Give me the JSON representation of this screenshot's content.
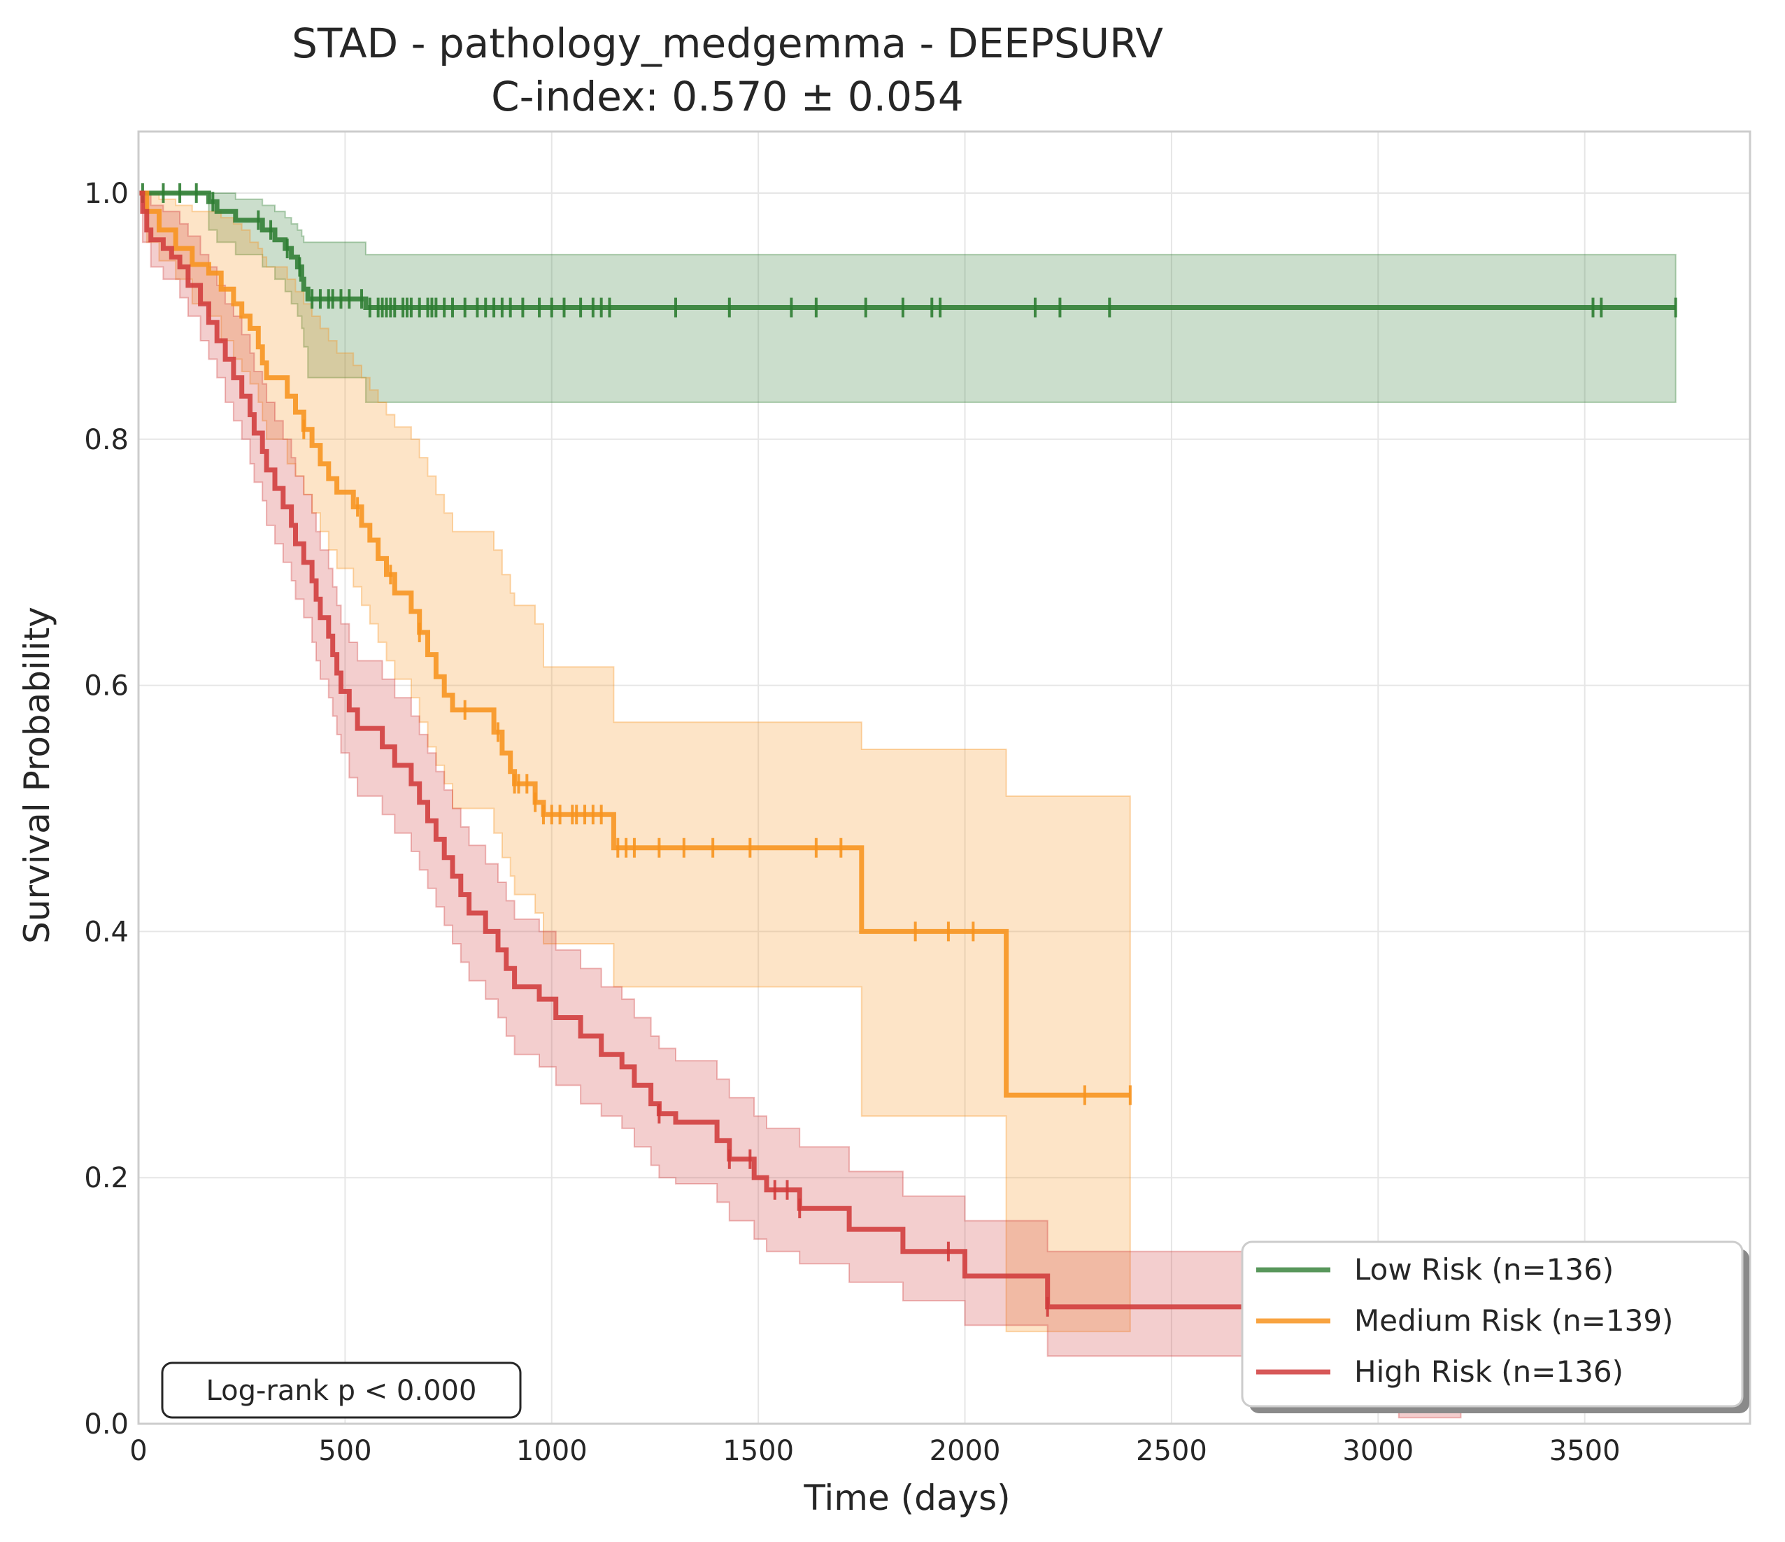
{
  "chart_data": {
    "type": "line",
    "title": "STAD - pathology_medgemma - DEEPSURV",
    "subtitle": "C-index: 0.570 ± 0.054",
    "xlabel": "Time (days)",
    "ylabel": "Survival Probability",
    "xlim": [
      0,
      3900
    ],
    "ylim": [
      0,
      1.05
    ],
    "xticks": [
      0,
      500,
      1000,
      1500,
      2000,
      2500,
      3000,
      3500
    ],
    "yticks": [
      0.0,
      0.2,
      0.4,
      0.6,
      0.8,
      1.0
    ],
    "xtick_labels": [
      "0",
      "500",
      "1000",
      "1500",
      "2000",
      "2500",
      "3000",
      "3500"
    ],
    "ytick_labels": [
      "0.0",
      "0.2",
      "0.4",
      "0.6",
      "0.8",
      "1.0"
    ],
    "grid": true,
    "legend_position": "bottom-right",
    "annotation": "Log-rank p < 0.000",
    "series": [
      {
        "name": "Low Risk (n=136)",
        "color": "#2e7d32",
        "steps": [
          [
            0,
            1.0
          ],
          [
            170,
            0.993
          ],
          [
            190,
            0.985
          ],
          [
            235,
            0.978
          ],
          [
            300,
            0.97
          ],
          [
            330,
            0.962
          ],
          [
            355,
            0.955
          ],
          [
            370,
            0.948
          ],
          [
            385,
            0.94
          ],
          [
            395,
            0.93
          ],
          [
            400,
            0.922
          ],
          [
            410,
            0.914
          ],
          [
            550,
            0.907
          ],
          [
            3720,
            0.907
          ]
        ],
        "ci": [
          [
            0,
            1.0,
            1.0
          ],
          [
            170,
            1.0,
            0.97
          ],
          [
            190,
            1.0,
            0.96
          ],
          [
            235,
            0.995,
            0.95
          ],
          [
            300,
            0.99,
            0.94
          ],
          [
            330,
            0.985,
            0.93
          ],
          [
            355,
            0.98,
            0.92
          ],
          [
            370,
            0.975,
            0.91
          ],
          [
            385,
            0.97,
            0.9
          ],
          [
            395,
            0.965,
            0.89
          ],
          [
            400,
            0.96,
            0.875
          ],
          [
            410,
            0.96,
            0.85
          ],
          [
            550,
            0.95,
            0.83
          ],
          [
            3720,
            0.95,
            0.83
          ]
        ],
        "censor": [
          10,
          60,
          100,
          140,
          180,
          290,
          320,
          360,
          390,
          420,
          440,
          460,
          470,
          490,
          510,
          540,
          560,
          580,
          590,
          600,
          610,
          620,
          640,
          650,
          660,
          680,
          700,
          710,
          720,
          740,
          760,
          790,
          820,
          840,
          860,
          880,
          900,
          930,
          970,
          1000,
          1030,
          1070,
          1100,
          1120,
          1140,
          1300,
          1430,
          1580,
          1640,
          1760,
          1850,
          1920,
          1940,
          2170,
          2230,
          2350,
          3520,
          3540,
          3720
        ]
      },
      {
        "name": "Medium Risk (n=139)",
        "color": "#f7931e",
        "steps": [
          [
            0,
            1.0
          ],
          [
            20,
            0.985
          ],
          [
            50,
            0.97
          ],
          [
            90,
            0.955
          ],
          [
            130,
            0.942
          ],
          [
            170,
            0.935
          ],
          [
            200,
            0.922
          ],
          [
            230,
            0.91
          ],
          [
            250,
            0.9
          ],
          [
            270,
            0.89
          ],
          [
            290,
            0.875
          ],
          [
            300,
            0.862
          ],
          [
            310,
            0.85
          ],
          [
            360,
            0.835
          ],
          [
            380,
            0.822
          ],
          [
            400,
            0.808
          ],
          [
            420,
            0.795
          ],
          [
            440,
            0.78
          ],
          [
            460,
            0.768
          ],
          [
            480,
            0.757
          ],
          [
            520,
            0.745
          ],
          [
            540,
            0.73
          ],
          [
            560,
            0.718
          ],
          [
            580,
            0.703
          ],
          [
            600,
            0.69
          ],
          [
            620,
            0.675
          ],
          [
            660,
            0.66
          ],
          [
            680,
            0.643
          ],
          [
            700,
            0.625
          ],
          [
            720,
            0.607
          ],
          [
            740,
            0.592
          ],
          [
            760,
            0.58
          ],
          [
            860,
            0.562
          ],
          [
            880,
            0.545
          ],
          [
            900,
            0.53
          ],
          [
            910,
            0.52
          ],
          [
            960,
            0.505
          ],
          [
            980,
            0.495
          ],
          [
            1150,
            0.468
          ],
          [
            1750,
            0.4
          ],
          [
            2100,
            0.267
          ],
          [
            2400,
            0.267
          ]
        ],
        "ci": [
          [
            0,
            1.0,
            1.0
          ],
          [
            20,
            1.0,
            0.96
          ],
          [
            50,
            0.995,
            0.945
          ],
          [
            90,
            0.99,
            0.93
          ],
          [
            130,
            0.985,
            0.91
          ],
          [
            170,
            0.985,
            0.9
          ],
          [
            200,
            0.98,
            0.88
          ],
          [
            230,
            0.975,
            0.865
          ],
          [
            250,
            0.97,
            0.855
          ],
          [
            270,
            0.96,
            0.845
          ],
          [
            290,
            0.955,
            0.83
          ],
          [
            300,
            0.948,
            0.815
          ],
          [
            310,
            0.94,
            0.8
          ],
          [
            360,
            0.93,
            0.78
          ],
          [
            380,
            0.92,
            0.77
          ],
          [
            400,
            0.91,
            0.755
          ],
          [
            420,
            0.9,
            0.74
          ],
          [
            440,
            0.89,
            0.725
          ],
          [
            460,
            0.88,
            0.71
          ],
          [
            480,
            0.87,
            0.695
          ],
          [
            520,
            0.86,
            0.68
          ],
          [
            540,
            0.85,
            0.665
          ],
          [
            560,
            0.84,
            0.65
          ],
          [
            580,
            0.83,
            0.635
          ],
          [
            600,
            0.82,
            0.62
          ],
          [
            620,
            0.81,
            0.605
          ],
          [
            660,
            0.8,
            0.59
          ],
          [
            680,
            0.785,
            0.57
          ],
          [
            700,
            0.77,
            0.55
          ],
          [
            720,
            0.755,
            0.535
          ],
          [
            740,
            0.74,
            0.52
          ],
          [
            760,
            0.725,
            0.5
          ],
          [
            860,
            0.71,
            0.48
          ],
          [
            880,
            0.69,
            0.46
          ],
          [
            900,
            0.675,
            0.445
          ],
          [
            910,
            0.665,
            0.43
          ],
          [
            960,
            0.65,
            0.415
          ],
          [
            980,
            0.615,
            0.39
          ],
          [
            1150,
            0.57,
            0.355
          ],
          [
            1750,
            0.548,
            0.25
          ],
          [
            2100,
            0.51,
            0.075
          ],
          [
            2400,
            0.51,
            0.075
          ]
        ],
        "censor": [
          400,
          530,
          610,
          680,
          790,
          870,
          910,
          920,
          940,
          960,
          980,
          1000,
          1020,
          1050,
          1060,
          1080,
          1100,
          1120,
          1160,
          1180,
          1200,
          1260,
          1320,
          1390,
          1480,
          1640,
          1700,
          1880,
          1960,
          2020,
          2290,
          2400
        ]
      },
      {
        "name": "High Risk (n=136)",
        "color": "#d03b3b",
        "steps": [
          [
            0,
            1.0
          ],
          [
            10,
            0.985
          ],
          [
            20,
            0.97
          ],
          [
            30,
            0.962
          ],
          [
            60,
            0.955
          ],
          [
            80,
            0.948
          ],
          [
            100,
            0.94
          ],
          [
            120,
            0.925
          ],
          [
            150,
            0.91
          ],
          [
            170,
            0.895
          ],
          [
            190,
            0.88
          ],
          [
            210,
            0.865
          ],
          [
            230,
            0.85
          ],
          [
            250,
            0.835
          ],
          [
            270,
            0.82
          ],
          [
            280,
            0.805
          ],
          [
            300,
            0.79
          ],
          [
            310,
            0.775
          ],
          [
            330,
            0.76
          ],
          [
            350,
            0.745
          ],
          [
            370,
            0.73
          ],
          [
            380,
            0.715
          ],
          [
            400,
            0.7
          ],
          [
            420,
            0.685
          ],
          [
            430,
            0.67
          ],
          [
            440,
            0.655
          ],
          [
            460,
            0.64
          ],
          [
            470,
            0.625
          ],
          [
            480,
            0.61
          ],
          [
            490,
            0.595
          ],
          [
            510,
            0.58
          ],
          [
            530,
            0.565
          ],
          [
            590,
            0.55
          ],
          [
            620,
            0.535
          ],
          [
            660,
            0.52
          ],
          [
            680,
            0.505
          ],
          [
            700,
            0.49
          ],
          [
            720,
            0.475
          ],
          [
            740,
            0.46
          ],
          [
            760,
            0.445
          ],
          [
            780,
            0.43
          ],
          [
            800,
            0.415
          ],
          [
            840,
            0.4
          ],
          [
            870,
            0.385
          ],
          [
            890,
            0.37
          ],
          [
            910,
            0.355
          ],
          [
            970,
            0.345
          ],
          [
            1010,
            0.33
          ],
          [
            1070,
            0.315
          ],
          [
            1120,
            0.3
          ],
          [
            1170,
            0.29
          ],
          [
            1200,
            0.275
          ],
          [
            1240,
            0.26
          ],
          [
            1260,
            0.252
          ],
          [
            1300,
            0.245
          ],
          [
            1400,
            0.23
          ],
          [
            1430,
            0.215
          ],
          [
            1490,
            0.2
          ],
          [
            1520,
            0.19
          ],
          [
            1600,
            0.175
          ],
          [
            1720,
            0.158
          ],
          [
            1850,
            0.14
          ],
          [
            2000,
            0.12
          ],
          [
            2200,
            0.095
          ],
          [
            2800,
            0.072
          ],
          [
            2900,
            0.048
          ],
          [
            3050,
            0.025
          ],
          [
            3200,
            0.025
          ]
        ],
        "ci": [
          [
            0,
            1.0,
            1.0
          ],
          [
            10,
            1.0,
            0.96
          ],
          [
            30,
            0.99,
            0.94
          ],
          [
            60,
            0.985,
            0.93
          ],
          [
            100,
            0.975,
            0.915
          ],
          [
            120,
            0.965,
            0.9
          ],
          [
            150,
            0.95,
            0.88
          ],
          [
            170,
            0.94,
            0.865
          ],
          [
            190,
            0.925,
            0.85
          ],
          [
            210,
            0.91,
            0.83
          ],
          [
            230,
            0.9,
            0.815
          ],
          [
            250,
            0.885,
            0.8
          ],
          [
            270,
            0.87,
            0.78
          ],
          [
            280,
            0.855,
            0.765
          ],
          [
            300,
            0.845,
            0.75
          ],
          [
            310,
            0.83,
            0.73
          ],
          [
            330,
            0.815,
            0.715
          ],
          [
            350,
            0.8,
            0.7
          ],
          [
            370,
            0.785,
            0.685
          ],
          [
            380,
            0.77,
            0.67
          ],
          [
            400,
            0.755,
            0.655
          ],
          [
            420,
            0.74,
            0.635
          ],
          [
            430,
            0.725,
            0.62
          ],
          [
            440,
            0.71,
            0.605
          ],
          [
            460,
            0.695,
            0.59
          ],
          [
            470,
            0.68,
            0.575
          ],
          [
            480,
            0.665,
            0.56
          ],
          [
            490,
            0.65,
            0.545
          ],
          [
            510,
            0.635,
            0.525
          ],
          [
            530,
            0.62,
            0.51
          ],
          [
            590,
            0.605,
            0.495
          ],
          [
            620,
            0.59,
            0.48
          ],
          [
            660,
            0.575,
            0.465
          ],
          [
            680,
            0.56,
            0.45
          ],
          [
            700,
            0.545,
            0.435
          ],
          [
            720,
            0.53,
            0.42
          ],
          [
            740,
            0.515,
            0.405
          ],
          [
            760,
            0.5,
            0.39
          ],
          [
            780,
            0.485,
            0.375
          ],
          [
            800,
            0.47,
            0.36
          ],
          [
            840,
            0.455,
            0.345
          ],
          [
            870,
            0.44,
            0.33
          ],
          [
            890,
            0.425,
            0.315
          ],
          [
            910,
            0.41,
            0.3
          ],
          [
            970,
            0.4,
            0.29
          ],
          [
            1010,
            0.385,
            0.275
          ],
          [
            1070,
            0.37,
            0.26
          ],
          [
            1120,
            0.355,
            0.25
          ],
          [
            1170,
            0.345,
            0.24
          ],
          [
            1200,
            0.33,
            0.225
          ],
          [
            1240,
            0.315,
            0.21
          ],
          [
            1260,
            0.305,
            0.2
          ],
          [
            1300,
            0.295,
            0.195
          ],
          [
            1400,
            0.28,
            0.18
          ],
          [
            1430,
            0.265,
            0.165
          ],
          [
            1490,
            0.25,
            0.15
          ],
          [
            1520,
            0.24,
            0.14
          ],
          [
            1600,
            0.225,
            0.13
          ],
          [
            1720,
            0.205,
            0.115
          ],
          [
            1850,
            0.185,
            0.1
          ],
          [
            2000,
            0.165,
            0.08
          ],
          [
            2200,
            0.14,
            0.055
          ],
          [
            2800,
            0.115,
            0.035
          ],
          [
            2900,
            0.09,
            0.02
          ],
          [
            3050,
            0.065,
            0.005
          ],
          [
            3200,
            0.065,
            0.005
          ]
        ],
        "censor": [
          1260,
          1430,
          1480,
          1540,
          1570,
          1600,
          1960,
          2200,
          3200
        ]
      }
    ]
  }
}
